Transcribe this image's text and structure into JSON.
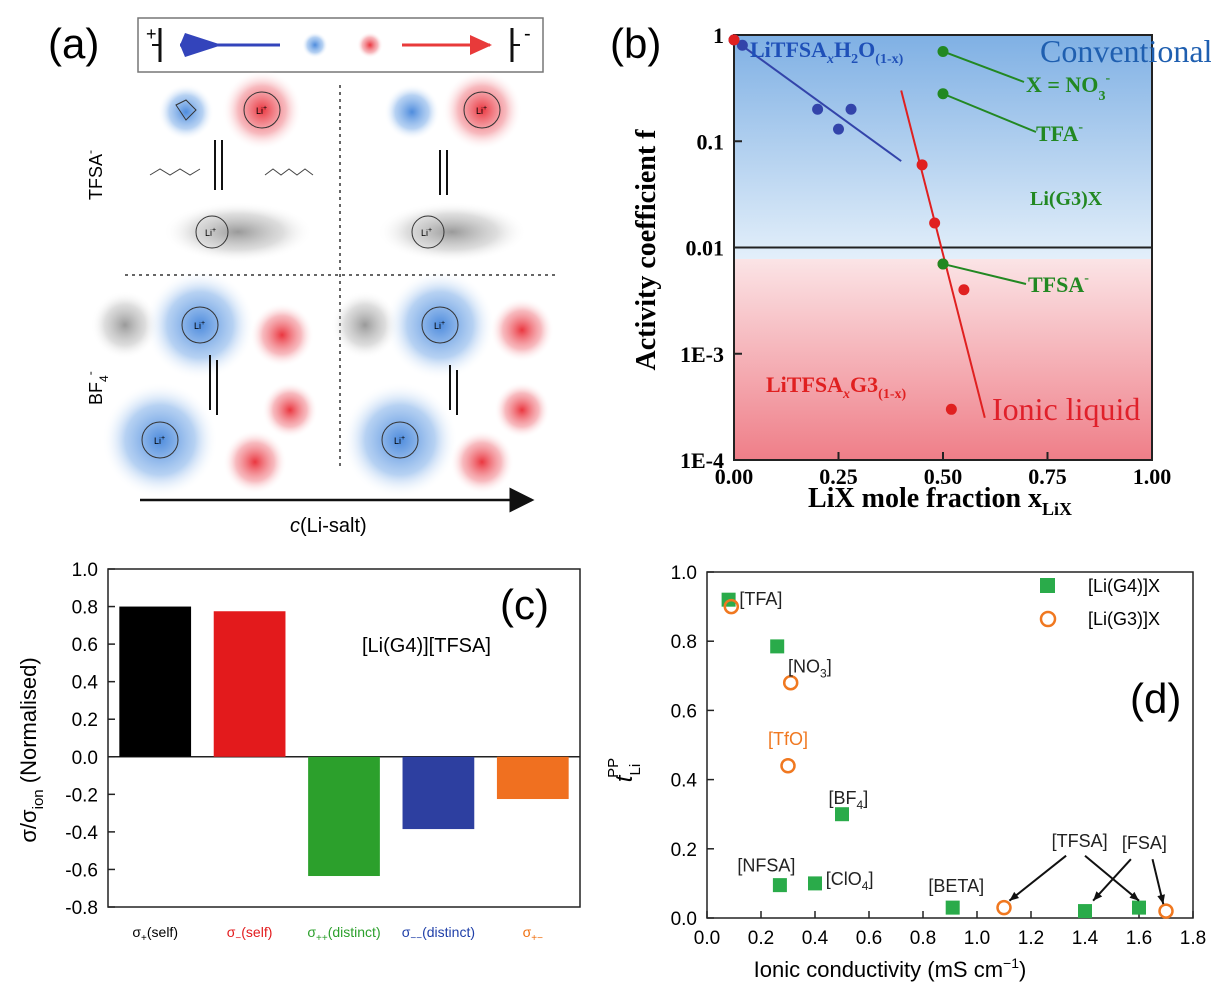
{
  "panel_a": {
    "label": "(a)",
    "row_labels": [
      "TFSA",
      "BF"
    ],
    "row_superscripts": [
      "-",
      "-"
    ],
    "bf_subscript": "4",
    "x_axis_label": "c",
    "x_axis_label_rest": "(Li-salt)",
    "electrode_plus": "+",
    "electrode_minus": "-",
    "li_label": "Li",
    "li_sup": "+"
  },
  "chart_data": [
    {
      "panel": "(b)",
      "type": "scatter",
      "yscale": "log",
      "xlabel": "LiX mole fraction x",
      "xlabel_sub": "LiX",
      "ylabel": "Activity coefficient f",
      "xlim": [
        0,
        1
      ],
      "ylim": [
        0.0001,
        1
      ],
      "xticks": [
        "0.00",
        "0.25",
        "0.50",
        "0.75",
        "1.00"
      ],
      "yticks": [
        "1E-4",
        "1E-3",
        "0.01",
        "0.1",
        "1"
      ],
      "regions": [
        {
          "label": "Conventional",
          "color": "#1f6fc4"
        },
        {
          "label": "Ionic liquid",
          "color": "#e0202a"
        }
      ],
      "reference_line_y": 0.01,
      "series": [
        {
          "name": "LiTFSA",
          "name_sub_x": "x",
          "name_mid": "H",
          "name_sub_2": "2",
          "name_end": "O",
          "name_sub_end": "(1-x)",
          "color": "#3344aa",
          "x": [
            0.0,
            0.02,
            0.2,
            0.25,
            0.28
          ],
          "y": [
            0.9,
            0.8,
            0.2,
            0.13,
            0.2
          ],
          "fit": {
            "x": [
              0.0,
              0.4
            ],
            "y": [
              0.9,
              0.065
            ]
          }
        },
        {
          "name": "LiTFSA",
          "name_sub_x": "x",
          "name_mid": "G3",
          "name_sub_2": "(1-x)",
          "color": "#e02020",
          "x": [
            0.0,
            0.45,
            0.48,
            0.5,
            0.55,
            0.52
          ],
          "y": [
            0.9,
            0.06,
            0.017,
            0.007,
            0.004,
            0.0003
          ],
          "fit": {
            "x": [
              0.4,
              0.6
            ],
            "y": [
              0.3,
              0.00025
            ]
          }
        },
        {
          "name": "Li(G3)X",
          "color": "#228822",
          "x": [
            0.5,
            0.5,
            0.5
          ],
          "y": [
            0.7,
            0.28,
            0.007
          ],
          "labels": [
            "X = NO",
            "TFA",
            "TFSA"
          ],
          "label_subs": [
            "3",
            "",
            ""
          ],
          "label_sups": [
            "-",
            "-",
            "-"
          ]
        }
      ]
    },
    {
      "panel": "(c)",
      "type": "bar",
      "ylabel": "σ/σ",
      "ylabel_sub": "ion",
      "ylabel_end": " (Normalised)",
      "annotation": "[Li(G4)][TFSA]",
      "ylim": [
        -0.8,
        1.0
      ],
      "yticks": [
        "-0.8",
        "-0.6",
        "-0.4",
        "-0.2",
        "0.0",
        "0.2",
        "0.4",
        "0.6",
        "0.8",
        "1.0"
      ],
      "categories": [
        {
          "sym": "σ",
          "sub": "+",
          "text": "(self)",
          "color": "#000000"
        },
        {
          "sym": "σ",
          "sub": "−",
          "text": "(self)",
          "color": "#e31a1c"
        },
        {
          "sym": "σ",
          "sub": "++",
          "text": "(distinct)",
          "color": "#2ca02c"
        },
        {
          "sym": "σ",
          "sub": "−−",
          "text": "(distinct)",
          "color": "#1f3fa8"
        },
        {
          "sym": "σ",
          "sub": "+−",
          "text": "",
          "color": "#f07010"
        }
      ],
      "values": [
        0.8,
        0.775,
        -0.635,
        -0.385,
        -0.225
      ],
      "colors": [
        "#000000",
        "#e31a1c",
        "#2ca02c",
        "#2d3fa0",
        "#f07020"
      ]
    },
    {
      "panel": "(d)",
      "type": "scatter",
      "xlabel": "Ionic conductivity (mS cm",
      "xlabel_sup": "−1",
      "xlabel_end": ")",
      "ylabel": "t",
      "ylabel_sub": "Li",
      "ylabel_sup": "PP",
      "xlim": [
        0.0,
        1.8
      ],
      "ylim": [
        0.0,
        1.0
      ],
      "xticks": [
        "0.0",
        "0.2",
        "0.4",
        "0.6",
        "0.8",
        "1.0",
        "1.2",
        "1.4",
        "1.6",
        "1.8"
      ],
      "yticks": [
        "0.0",
        "0.2",
        "0.4",
        "0.6",
        "0.8",
        "1.0"
      ],
      "legend_position": "top-right",
      "series": [
        {
          "name": "[Li(G4)]X",
          "marker": "filled-square",
          "color": "#2aab4a",
          "x": [
            0.08,
            0.26,
            0.5,
            0.27,
            0.4,
            0.91,
            1.4,
            1.6
          ],
          "y": [
            0.92,
            0.785,
            0.3,
            0.095,
            0.1,
            0.03,
            0.02,
            0.03
          ]
        },
        {
          "name": "[Li(G3)]X",
          "marker": "open-circle",
          "color": "#f07820",
          "x": [
            0.09,
            0.31,
            0.3,
            1.1,
            1.7
          ],
          "y": [
            0.9,
            0.68,
            0.44,
            0.03,
            0.02
          ]
        }
      ],
      "annotations": [
        {
          "text": "[TFA]",
          "sub": "",
          "color": "#222222"
        },
        {
          "text": "[NO",
          "sub": "3",
          "end": "]",
          "color": "#222222"
        },
        {
          "text": "[TfO]",
          "sub": "",
          "color": "#f07820"
        },
        {
          "text": "[BF",
          "sub": "4",
          "end": "]",
          "color": "#222222"
        },
        {
          "text": "[NFSA]",
          "sub": "",
          "color": "#222222"
        },
        {
          "text": "[ClO",
          "sub": "4",
          "end": "]",
          "color": "#222222"
        },
        {
          "text": "[BETA]",
          "sub": "",
          "color": "#222222"
        },
        {
          "text": "[TFSA]",
          "sub": "",
          "color": "#222222"
        },
        {
          "text": "[FSA]",
          "sub": "",
          "color": "#222222"
        }
      ],
      "panel_letter": "(d)"
    }
  ],
  "panel_c_letter": "(c)"
}
